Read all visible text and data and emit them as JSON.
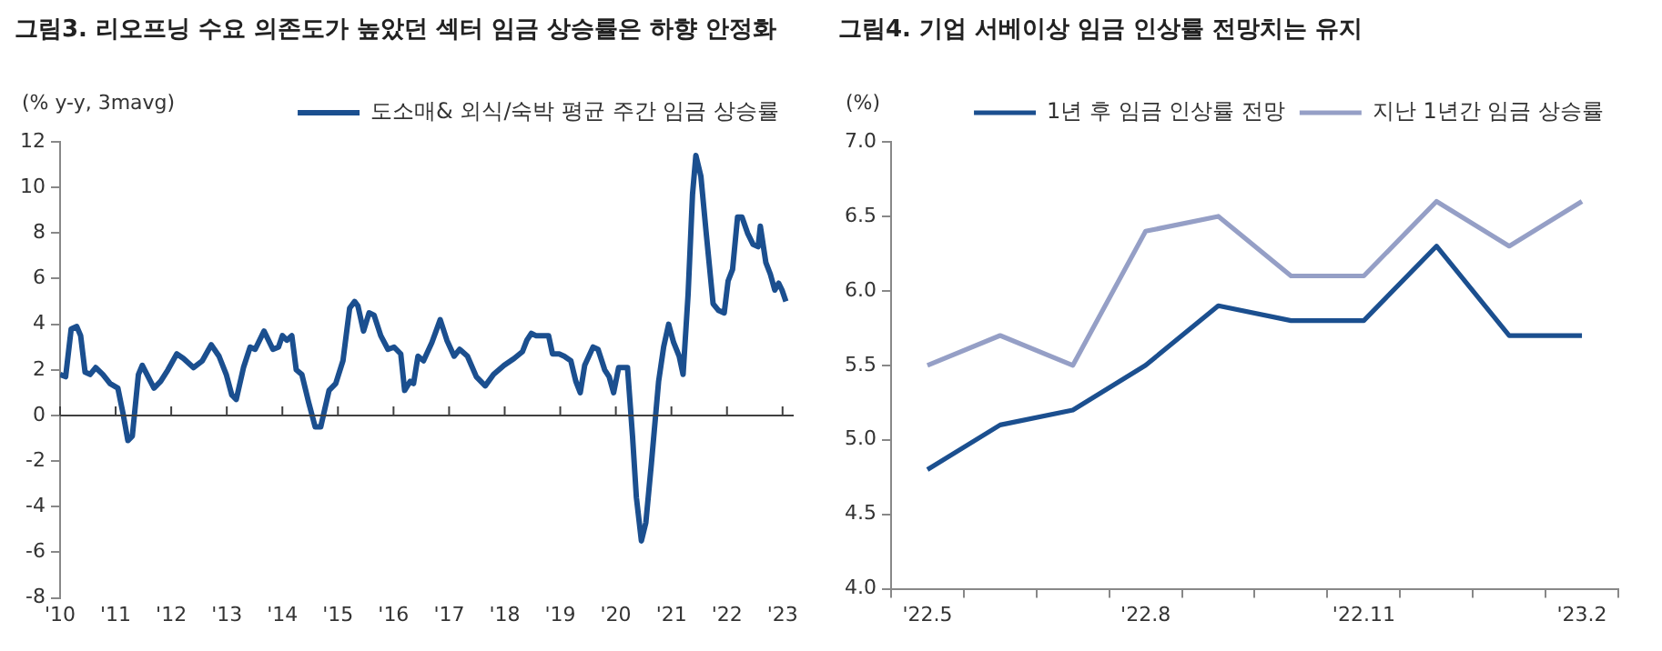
{
  "chart_data": [
    {
      "type": "line",
      "title": "그림3. 리오프닝 수요 의존도가 높았던 섹터 임금 상승률은 하향 안정화",
      "ylabel": "(% y-y, 3mavg)",
      "legend": "top",
      "grid": false,
      "xlim": [
        2010,
        2023.2
      ],
      "xticks": [
        {
          "value": 2010,
          "label": "'10"
        },
        {
          "value": 2011,
          "label": "'11"
        },
        {
          "value": 2012,
          "label": "'12"
        },
        {
          "value": 2013,
          "label": "'13"
        },
        {
          "value": 2014,
          "label": "'14"
        },
        {
          "value": 2015,
          "label": "'15"
        },
        {
          "value": 2016,
          "label": "'16"
        },
        {
          "value": 2017,
          "label": "'17"
        },
        {
          "value": 2018,
          "label": "'18"
        },
        {
          "value": 2019,
          "label": "'19"
        },
        {
          "value": 2020,
          "label": "'20"
        },
        {
          "value": 2021,
          "label": "'21"
        },
        {
          "value": 2022,
          "label": "'22"
        },
        {
          "value": 2023,
          "label": "'23"
        }
      ],
      "ylim": [
        -8,
        12
      ],
      "yticks": [
        -8,
        -6,
        -4,
        -2,
        0,
        2,
        4,
        6,
        8,
        10,
        12
      ],
      "ref_lines": [
        {
          "axis": "y",
          "value": 0,
          "color": "#404040"
        }
      ],
      "series": [
        {
          "name": "도소매& 외식/숙박 평균 주간 임금 상승률",
          "color": "#1b4f8f",
          "x": [
            2010.0,
            2010.1,
            2010.2,
            2010.3,
            2010.37,
            2010.45,
            2010.54,
            2010.64,
            2010.77,
            2010.9,
            2011.04,
            2011.14,
            2011.22,
            2011.3,
            2011.41,
            2011.48,
            2011.69,
            2011.81,
            2011.94,
            2012.1,
            2012.22,
            2012.4,
            2012.56,
            2012.72,
            2012.86,
            2012.99,
            2013.09,
            2013.17,
            2013.3,
            2013.42,
            2013.51,
            2013.67,
            2013.83,
            2013.93,
            2014.0,
            2014.08,
            2014.17,
            2014.25,
            2014.35,
            2014.47,
            2014.59,
            2014.69,
            2014.84,
            2014.96,
            2015.09,
            2015.21,
            2015.3,
            2015.36,
            2015.46,
            2015.56,
            2015.65,
            2015.77,
            2015.9,
            2016.01,
            2016.13,
            2016.2,
            2016.3,
            2016.36,
            2016.44,
            2016.54,
            2016.69,
            2016.84,
            2016.96,
            2017.09,
            2017.19,
            2017.33,
            2017.49,
            2017.65,
            2017.8,
            2017.99,
            2018.17,
            2018.32,
            2018.4,
            2018.48,
            2018.56,
            2018.7,
            2018.79,
            2018.86,
            2018.98,
            2019.07,
            2019.19,
            2019.28,
            2019.36,
            2019.44,
            2019.59,
            2019.68,
            2019.8,
            2019.88,
            2019.96,
            2020.05,
            2020.21,
            2020.3,
            2020.37,
            2020.46,
            2020.54,
            2020.64,
            2020.77,
            2020.86,
            2020.95,
            2021.04,
            2021.14,
            2021.21,
            2021.3,
            2021.38,
            2021.44,
            2021.53,
            2021.63,
            2021.75,
            2021.85,
            2021.95,
            2022.02,
            2022.1,
            2022.19,
            2022.27,
            2022.37,
            2022.47,
            2022.56,
            2022.6,
            2022.7,
            2022.78,
            2022.86,
            2022.93,
            2022.99,
            2023.06
          ],
          "values": [
            1.8,
            1.7,
            3.8,
            3.9,
            3.5,
            1.9,
            1.8,
            2.1,
            1.8,
            1.4,
            1.2,
            0,
            -1.1,
            -0.9,
            1.8,
            2.2,
            1.2,
            1.5,
            2.0,
            2.7,
            2.5,
            2.1,
            2.4,
            3.1,
            2.6,
            1.8,
            0.9,
            0.7,
            2.1,
            3.0,
            2.9,
            3.7,
            2.9,
            3.0,
            3.5,
            3.3,
            3.5,
            2.0,
            1.8,
            0.6,
            -0.5,
            -0.5,
            1.1,
            1.4,
            2.4,
            4.7,
            5.0,
            4.8,
            3.7,
            4.5,
            4.4,
            3.5,
            2.9,
            3.0,
            2.7,
            1.1,
            1.5,
            1.4,
            2.6,
            2.4,
            3.2,
            4.2,
            3.3,
            2.6,
            2.9,
            2.6,
            1.7,
            1.3,
            1.8,
            2.2,
            2.5,
            2.8,
            3.3,
            3.6,
            3.5,
            3.5,
            3.5,
            2.7,
            2.7,
            2.6,
            2.4,
            1.5,
            1.0,
            2.2,
            3.0,
            2.9,
            2.0,
            1.7,
            1.0,
            2.1,
            2.1,
            -0.9,
            -3.6,
            -5.5,
            -4.7,
            -2.1,
            1.5,
            3.0,
            4.0,
            3.2,
            2.6,
            1.8,
            5.3,
            9.7,
            11.4,
            10.5,
            7.9,
            4.9,
            4.6,
            4.5,
            5.9,
            6.4,
            8.7,
            8.7,
            8.0,
            7.5,
            7.4,
            8.3,
            6.7,
            6.2,
            5.5,
            5.8,
            5.5,
            5.0
          ]
        }
      ]
    },
    {
      "type": "line",
      "title": "그림4. 기업 서베이상 임금 인상률 전망치는 유지",
      "ylabel": "(%)",
      "legend": "top",
      "grid": false,
      "categories": [
        "'22.5",
        null,
        null,
        "'22.8",
        null,
        null,
        "'22.11",
        null,
        null,
        "'23.2"
      ],
      "ylim": [
        4,
        7
      ],
      "yticks": [
        {
          "value": 4,
          "label": "4.0"
        },
        {
          "value": 4.5,
          "label": "4.5"
        },
        {
          "value": 5,
          "label": "5.0"
        },
        {
          "value": 5.5,
          "label": "5.5"
        },
        {
          "value": 6,
          "label": "6.0"
        },
        {
          "value": 6.5,
          "label": "6.5"
        },
        {
          "value": 7,
          "label": "7.0"
        }
      ],
      "series": [
        {
          "name": "1년 후 임금 인상률 전망",
          "color": "#1b4f8f",
          "values": [
            4.8,
            5.1,
            5.2,
            5.5,
            5.9,
            5.8,
            5.8,
            6.3,
            5.7,
            5.7
          ]
        },
        {
          "name": "지난 1년간 임금 상승률",
          "color": "#959fc6",
          "values": [
            5.5,
            5.7,
            5.5,
            6.4,
            6.5,
            6.1,
            6.1,
            6.6,
            6.3,
            6.6
          ]
        }
      ]
    }
  ]
}
